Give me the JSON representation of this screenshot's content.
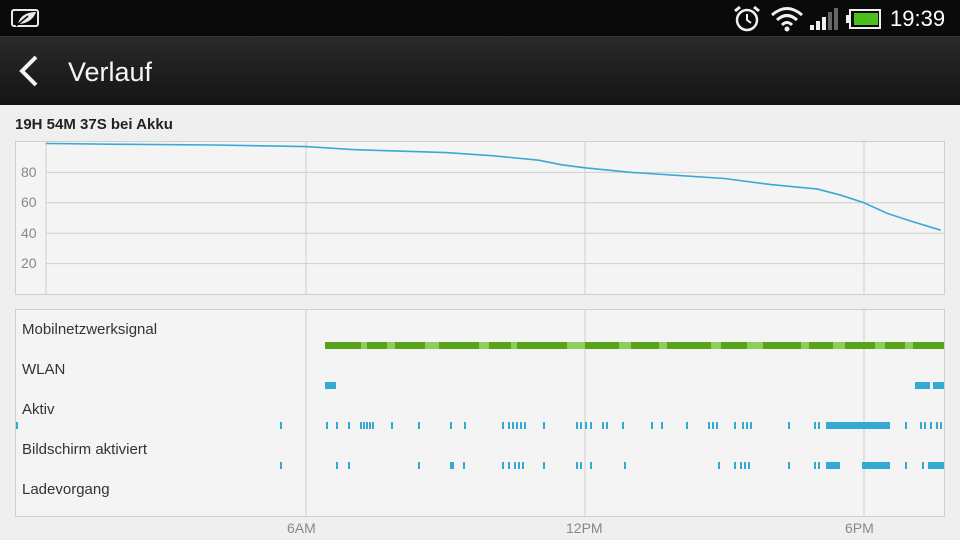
{
  "status_bar": {
    "time": "19:39",
    "left_icon": "battery-saver-leaf-icon",
    "icons": [
      "alarm-clock-icon",
      "wifi-icon",
      "cellular-signal-icon",
      "battery-icon"
    ]
  },
  "action_bar": {
    "back_icon": "chevron-left-icon",
    "title": "Verlauf"
  },
  "summary": {
    "duration": "19H 54M 37S bei Akku"
  },
  "colors": {
    "battery_line": "#3aa9d4",
    "signal_dark": "#57a41a",
    "signal_light": "#8fce5c",
    "activity": "#34a9d4",
    "grid": "#cfcfcf"
  },
  "chart_data": {
    "type": "line",
    "title": "",
    "ylabel": "",
    "y_ticks": [
      "20",
      "40",
      "60",
      "80"
    ],
    "ylim": [
      0,
      100
    ],
    "x_ticks": [
      "6AM",
      "12PM",
      "6PM"
    ],
    "x": [
      "23:44",
      "00:30",
      "02:00",
      "04:00",
      "06:00",
      "07:00",
      "08:00",
      "09:00",
      "10:00",
      "11:00",
      "11:30",
      "12:00",
      "13:00",
      "14:00",
      "15:00",
      "16:00",
      "17:00",
      "17:30",
      "18:00",
      "18:30",
      "19:00",
      "19:39"
    ],
    "values": [
      99,
      99,
      98.5,
      98,
      97,
      95,
      94,
      93,
      91,
      88,
      85,
      83,
      80,
      78,
      76,
      72,
      69,
      65,
      60,
      53,
      48,
      42
    ]
  },
  "activity_chart": {
    "x_ticks": [
      "6AM",
      "12PM",
      "6PM"
    ],
    "rows": [
      {
        "label": "Mobilnetzwerksignal"
      },
      {
        "label": "WLAN"
      },
      {
        "label": "Aktiv"
      },
      {
        "label": "Bildschirm aktiviert"
      },
      {
        "label": "Ladevorgang"
      }
    ]
  }
}
